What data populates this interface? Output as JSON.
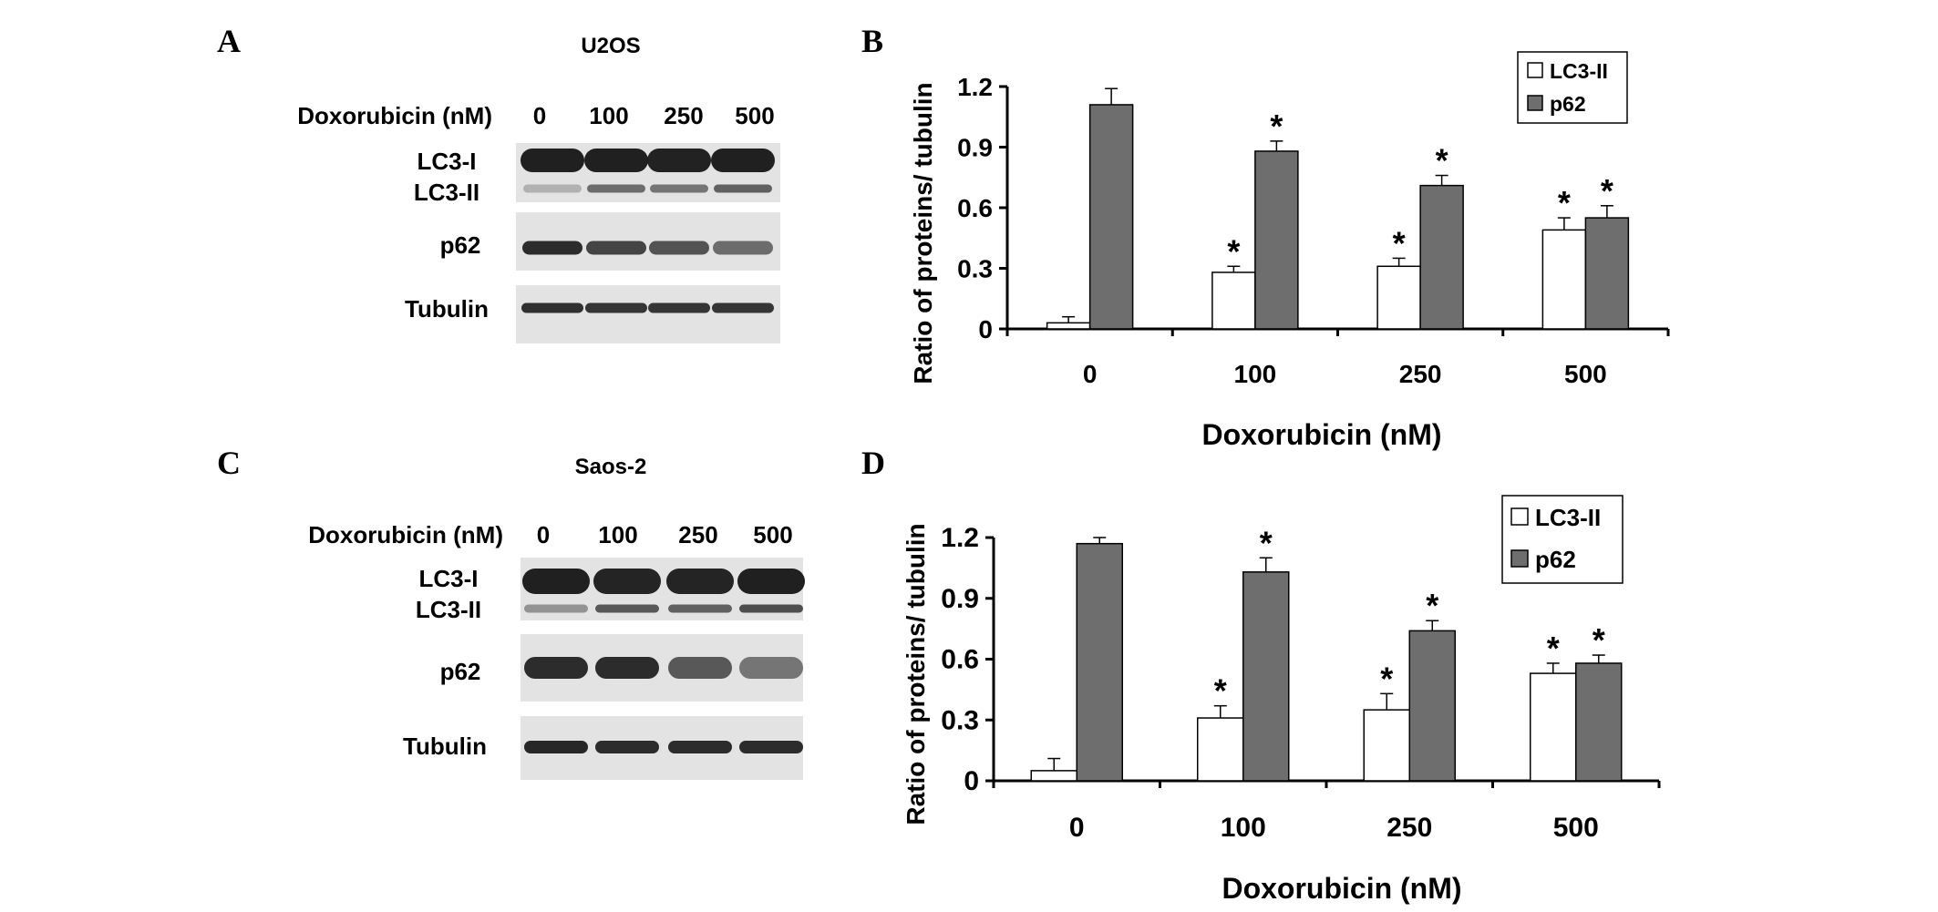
{
  "colors": {
    "background": "#ffffff",
    "bar_lc3ii_fill": "#ffffff",
    "bar_p62_fill": "#6e6e6e",
    "blot_membrane": "#e3e3e3",
    "blot_band": "#1c1c1c"
  },
  "panels": {
    "A": {
      "label": "A",
      "cell_line": "U2OS",
      "treatment_label": "Doxorubicin (nM)",
      "doses": [
        "0",
        "100",
        "250",
        "500"
      ],
      "rows": [
        {
          "name": "LC3-I"
        },
        {
          "name": "LC3-II"
        },
        {
          "name": "p62"
        },
        {
          "name": "Tubulin"
        }
      ],
      "band_intensity": {
        "LC3-I": [
          0.98,
          0.98,
          0.97,
          0.98
        ],
        "LC3-II": [
          0.25,
          0.6,
          0.55,
          0.65
        ],
        "p62": [
          0.92,
          0.8,
          0.72,
          0.6
        ],
        "Tubulin": [
          0.9,
          0.88,
          0.88,
          0.88
        ]
      }
    },
    "C": {
      "label": "C",
      "cell_line": "Saos-2",
      "treatment_label": "Doxorubicin (nM)",
      "doses": [
        "0",
        "100",
        "250",
        "500"
      ],
      "rows": [
        {
          "name": "LC3-I"
        },
        {
          "name": "LC3-II"
        },
        {
          "name": "p62"
        },
        {
          "name": "Tubulin"
        }
      ],
      "band_intensity": {
        "LC3-I": [
          0.98,
          0.96,
          0.96,
          0.98
        ],
        "LC3-II": [
          0.4,
          0.7,
          0.65,
          0.75
        ],
        "p62": [
          0.92,
          0.92,
          0.7,
          0.55
        ],
        "Tubulin": [
          0.95,
          0.92,
          0.92,
          0.92
        ]
      }
    }
  },
  "chart_data": [
    {
      "panel": "B",
      "label": "B",
      "type": "bar",
      "categories": [
        "0",
        "100",
        "250",
        "500"
      ],
      "series": [
        {
          "name": "LC3-II",
          "values": [
            0.03,
            0.28,
            0.31,
            0.49
          ],
          "errors": [
            0.03,
            0.03,
            0.04,
            0.06
          ],
          "significant": [
            false,
            true,
            true,
            true
          ]
        },
        {
          "name": "p62",
          "values": [
            1.11,
            0.88,
            0.71,
            0.55
          ],
          "errors": [
            0.08,
            0.05,
            0.05,
            0.06
          ],
          "significant": [
            false,
            true,
            true,
            true
          ]
        }
      ],
      "title": "",
      "xlabel": "Doxorubicin (nM)",
      "ylabel": "Ratio of proteins/ tubulin",
      "ylim": [
        0,
        1.2
      ],
      "yticks": [
        "0",
        "0.3",
        "0.6",
        "0.9",
        "1.2"
      ],
      "significance_marker": "*",
      "legend_position": "top-right",
      "grid": false
    },
    {
      "panel": "D",
      "label": "D",
      "type": "bar",
      "categories": [
        "0",
        "100",
        "250",
        "500"
      ],
      "series": [
        {
          "name": "LC3-II",
          "values": [
            0.05,
            0.31,
            0.35,
            0.53
          ],
          "errors": [
            0.06,
            0.06,
            0.08,
            0.05
          ],
          "significant": [
            false,
            true,
            true,
            true
          ]
        },
        {
          "name": "p62",
          "values": [
            1.17,
            1.03,
            0.74,
            0.58
          ],
          "errors": [
            0.03,
            0.07,
            0.05,
            0.04
          ],
          "significant": [
            false,
            true,
            true,
            true
          ]
        }
      ],
      "title": "",
      "xlabel": "Doxorubicin (nM)",
      "ylabel": "Ratio of proteins/ tubulin",
      "ylim": [
        0,
        1.2
      ],
      "yticks": [
        "0",
        "0.3",
        "0.6",
        "0.9",
        "1.2"
      ],
      "significance_marker": "*",
      "legend_position": "top-right",
      "grid": false
    }
  ]
}
